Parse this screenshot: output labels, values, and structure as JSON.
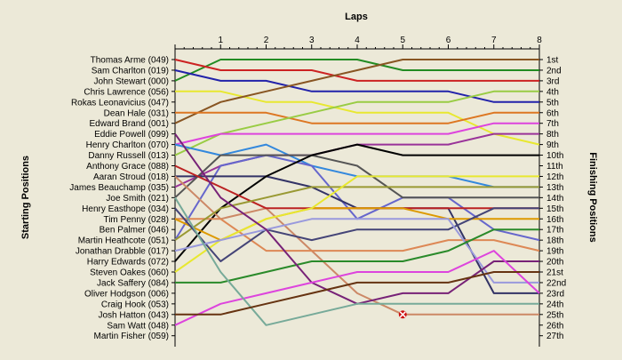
{
  "chart_data": {
    "type": "line",
    "title": "",
    "xlabel": "Laps",
    "ylabel_left": "Starting Positions",
    "ylabel_right": "Finishing Positions",
    "x": [
      0,
      1,
      2,
      3,
      4,
      5,
      6,
      7,
      8
    ],
    "x_ticks": [
      "1",
      "2",
      "3",
      "4",
      "5",
      "6",
      "7",
      "8"
    ],
    "ylim": [
      1,
      27
    ],
    "y_inverted": true,
    "grid": false,
    "left_labels": [
      "Thomas Arme (049)",
      "Sam Charlton (019)",
      "John Stewart (000)",
      "Chris Lawrence (056)",
      "Rokas Leonavicius (047)",
      "Dean Hale (031)",
      "Edward Brand (001)",
      "Eddie Powell (099)",
      "Henry Charlton (070)",
      "Danny Russell (013)",
      "Anthony Grace (088)",
      "Aaran Stroud (018)",
      "James Beauchamp (035)",
      "Joe Smith (021)",
      "Henry Easthope (034)",
      "Tim Penny (028)",
      "Ben Palmer (046)",
      "Martin Heathcote (051)",
      "Jonathan Drabble (017)",
      "Harry Edwards (072)",
      "Steven Oakes (060)",
      "Jack Saffery (084)",
      "Oliver Hodgson (006)",
      "Craig Hook (053)",
      "Josh Hatton (043)",
      "Sam Watt (048)",
      "Martin Fisher (059)"
    ],
    "right_labels": [
      "1st",
      "2nd",
      "3rd",
      "4th",
      "5th",
      "6th",
      "7th",
      "8th",
      "9th",
      "10th",
      "11th",
      "12th",
      "13th",
      "14th",
      "15th",
      "16th",
      "17th",
      "18th",
      "19th",
      "20th",
      "21st",
      "22nd",
      "23rd",
      "24th",
      "25th",
      "26th",
      "27th"
    ],
    "series": [
      {
        "color": "#228b22",
        "values": [
          3,
          1,
          1,
          1,
          1,
          2,
          2,
          2,
          2
        ]
      },
      {
        "color": "#cc2222",
        "values": [
          1,
          2,
          2,
          2,
          3,
          3,
          3,
          3,
          3
        ]
      },
      {
        "color": "#2222aa",
        "values": [
          2,
          3,
          3,
          4,
          4,
          4,
          4,
          5,
          5
        ]
      },
      {
        "color": "#e8e830",
        "values": [
          4,
          4,
          5,
          5,
          6,
          6,
          6,
          8,
          9
        ]
      },
      {
        "color": "#885522",
        "values": [
          7,
          5,
          4,
          3,
          2,
          1,
          1,
          1,
          1
        ]
      },
      {
        "color": "#dd7722",
        "values": [
          6,
          6,
          6,
          7,
          7,
          7,
          7,
          6,
          6
        ]
      },
      {
        "color": "#99cc44",
        "values": [
          10,
          8,
          7,
          6,
          5,
          5,
          5,
          4,
          4
        ]
      },
      {
        "color": "#dd44dd",
        "values": [
          9,
          8,
          8,
          8,
          8,
          8,
          8,
          7,
          7
        ]
      },
      {
        "color": "#3388dd",
        "values": [
          9,
          10,
          9,
          11,
          12,
          12,
          12,
          13,
          13
        ]
      },
      {
        "color": "#993399",
        "values": [
          13,
          11,
          10,
          10,
          9,
          9,
          9,
          8,
          8
        ]
      },
      {
        "color": "#6666cc",
        "values": [
          18,
          11,
          10,
          11,
          16,
          14,
          14,
          17,
          18
        ]
      },
      {
        "color": "#555555",
        "values": [
          14,
          10,
          10,
          10,
          11,
          14,
          14,
          14,
          14
        ]
      },
      {
        "color": "#333366",
        "values": [
          12,
          12,
          12,
          13,
          15,
          15,
          15,
          23,
          23
        ]
      },
      {
        "color": "#000000",
        "values": [
          20,
          15,
          12,
          10,
          9,
          10,
          10,
          10,
          10
        ]
      },
      {
        "color": "#cc8866",
        "values": [
          12,
          16,
          15,
          19,
          23,
          25,
          25,
          25,
          25
        ]
      },
      {
        "color": "#bb2222",
        "values": [
          11,
          13,
          15,
          15,
          15,
          15,
          15,
          15,
          15
        ]
      },
      {
        "color": "#dd8855",
        "values": [
          16,
          16,
          19,
          19,
          19,
          19,
          18,
          18,
          19
        ]
      },
      {
        "color": "#999933",
        "values": [
          18,
          15,
          14,
          13,
          13,
          13,
          13,
          13,
          13
        ]
      },
      {
        "color": "#dd9900",
        "values": [
          16,
          18,
          16,
          15,
          15,
          15,
          16,
          16,
          16
        ]
      },
      {
        "color": "#e8e830",
        "values": [
          21,
          18,
          16,
          15,
          12,
          12,
          12,
          12,
          12
        ]
      },
      {
        "color": "#444477",
        "values": [
          15,
          20,
          17,
          18,
          17,
          17,
          17,
          15,
          15
        ]
      },
      {
        "color": "#9999dd",
        "values": [
          19,
          18,
          17,
          16,
          16,
          16,
          16,
          22,
          22
        ]
      },
      {
        "color": "#2a8a2a",
        "values": [
          22,
          22,
          21,
          20,
          20,
          20,
          19,
          17,
          17
        ]
      },
      {
        "color": "#772277",
        "values": [
          8,
          14,
          17,
          22,
          24,
          23,
          23,
          20,
          20
        ]
      },
      {
        "color": "#dd44dd",
        "values": [
          26,
          24,
          23,
          22,
          21,
          21,
          21,
          19,
          23
        ]
      },
      {
        "color": "#77aa99",
        "values": [
          14,
          21,
          26,
          25,
          24,
          24,
          24,
          24,
          24
        ]
      },
      {
        "color": "#663311",
        "values": [
          25,
          25,
          24,
          23,
          22,
          22,
          22,
          21,
          21
        ]
      }
    ],
    "retired_marker": {
      "lap": 5,
      "position": 25
    }
  }
}
